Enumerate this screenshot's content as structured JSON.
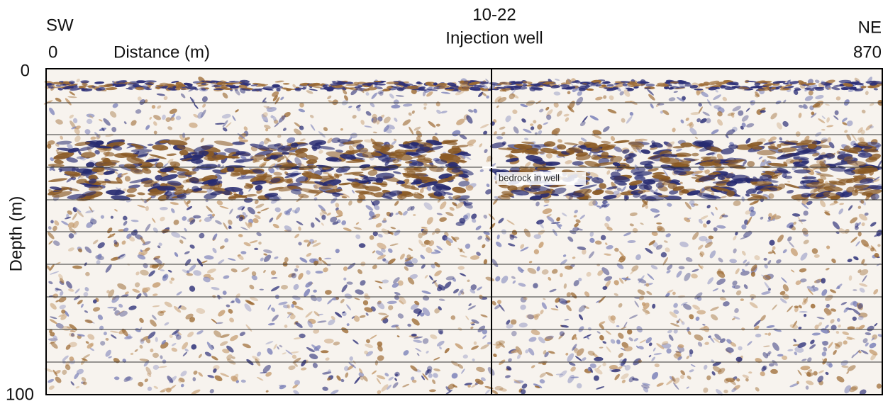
{
  "figure": {
    "title": "10-22",
    "subtitle": "Injection well",
    "left_direction": "SW",
    "right_direction": "NE",
    "x_axis": {
      "label": "Distance (m)",
      "start": 0,
      "end": 870
    },
    "y_axis": {
      "label": "Depth (m)",
      "top": 0,
      "bottom": 100
    },
    "annotation": "bedrock in well"
  }
}
